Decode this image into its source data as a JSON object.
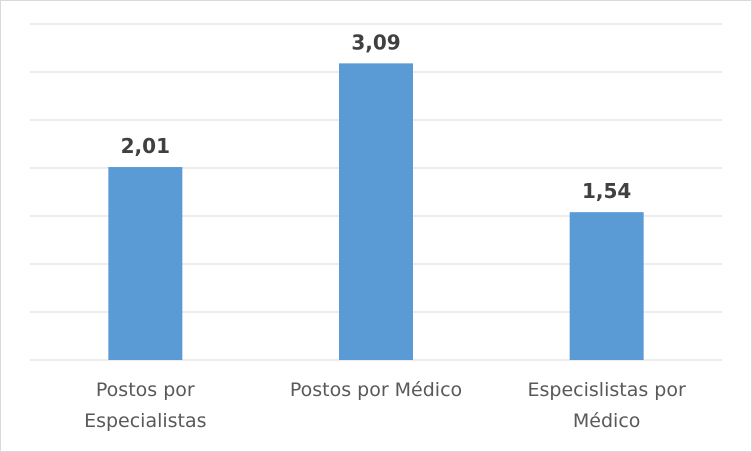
{
  "chart_data": {
    "type": "bar",
    "categories": [
      "Postos por Especialistas",
      "Postos por Médico",
      "Especislistas por Médico"
    ],
    "values": [
      2.01,
      3.09,
      1.54
    ],
    "value_labels": [
      "2,01",
      "3,09",
      "1,54"
    ],
    "color": "#5b9bd5",
    "ylim": [
      0,
      3.5
    ],
    "yticks": [
      0,
      0.5,
      1,
      1.5,
      2,
      2.5,
      3,
      3.5
    ],
    "grid": true
  }
}
